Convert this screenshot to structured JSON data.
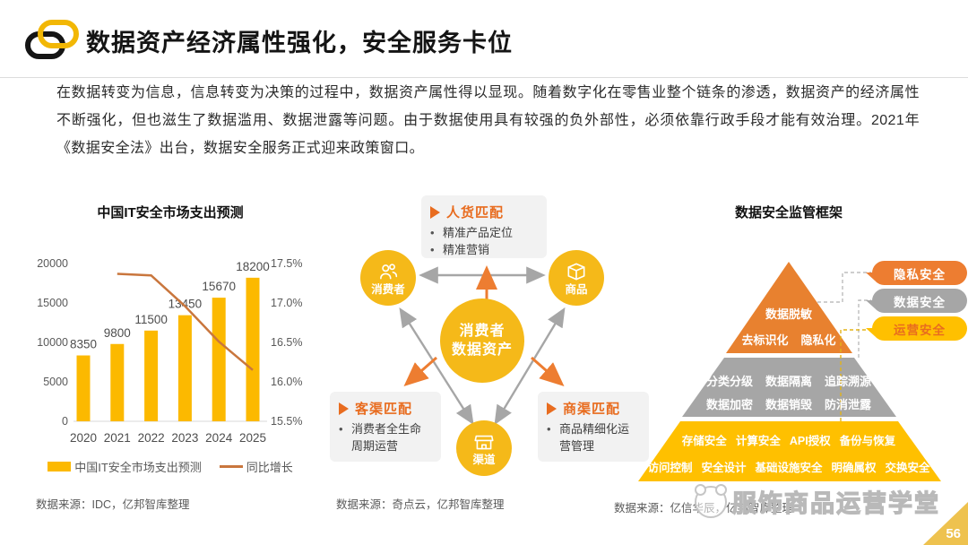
{
  "header": {
    "title": "数据资产经济属性强化，安全服务卡位",
    "logo_icon": "chain-links-icon",
    "accent_yellow": "#F2B705"
  },
  "intro": {
    "text": "在数据转变为信息，信息转变为决策的过程中，数据资产属性得以显现。随着数字化在零售业整个链条的渗透，数据资产的经济属性不断强化，但也滋生了数据滥用、数据泄露等问题。由于数据使用具有较强的负外部性，必须依靠行政手段才能有效治理。2021年《数据安全法》出台，数据安全服务正式迎来政策窗口。"
  },
  "chart_data": {
    "type": "bar+line",
    "title": "中国IT安全市场支出预测",
    "categories": [
      "2020",
      "2021",
      "2022",
      "2023",
      "2024",
      "2025"
    ],
    "series": [
      {
        "name": "中国IT安全市场支出预测",
        "type": "bar",
        "values": [
          8350,
          9800,
          11500,
          13450,
          15670,
          18200
        ],
        "color": "#FCB900"
      },
      {
        "name": "同比增长",
        "type": "line",
        "values": [
          null,
          17.37,
          17.35,
          16.96,
          16.51,
          16.15
        ],
        "unit": "%",
        "color": "#C9763D"
      }
    ],
    "left_axis": {
      "ticks": [
        "20000",
        "15000",
        "10000",
        "5000",
        "0"
      ],
      "min": 0,
      "max": 20000
    },
    "right_axis": {
      "ticks": [
        "17.5%",
        "17.0%",
        "16.5%",
        "16.0%",
        "15.5%"
      ],
      "min": 15.5,
      "max": 17.5
    },
    "grid": false,
    "legend_position": "bottom",
    "source": "数据来源：IDC，亿邦智库整理"
  },
  "diagram": {
    "center": {
      "lines": [
        "消费者",
        "数据资产"
      ],
      "color": "#F5B919"
    },
    "nodes": [
      {
        "label": "消费者",
        "icon": "users-icon"
      },
      {
        "label": "商品",
        "icon": "box-icon"
      },
      {
        "label": "渠道",
        "icon": "store-icon"
      }
    ],
    "cards": [
      {
        "title": "人货匹配",
        "bullets": [
          "精准产品定位",
          "精准营销"
        ]
      },
      {
        "title": "客渠匹配",
        "bullets": [
          "消费者全生命周期运营"
        ]
      },
      {
        "title": "商渠匹配",
        "bullets": [
          "商品精细化运营管理"
        ]
      }
    ],
    "arrow_orange": "#ED7D31",
    "arrow_gray": "#A6A6A6",
    "source": "数据来源：奇点云，亿邦智库整理"
  },
  "pyramid": {
    "title": "数据安全监管框架",
    "levels": [
      {
        "name": "隐私安全",
        "color": "#E8812F",
        "rows": [
          [
            "数据脱敏"
          ],
          [
            "去标识化",
            "隐私化"
          ]
        ]
      },
      {
        "name": "数据安全",
        "color": "#A6A6A6",
        "rows": [
          [
            "分类分级",
            "数据隔离",
            "追踪溯源"
          ],
          [
            "数据加密",
            "数据销毁",
            "防消泄露"
          ]
        ]
      },
      {
        "name": "运营安全",
        "color": "#FFC000",
        "rows": [
          [
            "存储安全",
            "计算安全",
            "API授权",
            "备份与恢复"
          ],
          [
            "访问控制",
            "安全设计",
            "基础设施安全",
            "明确属权",
            "交换安全"
          ]
        ]
      }
    ],
    "pills": [
      {
        "label": "隐私安全",
        "bg": "#ED7D31",
        "text": "#FFFFFF"
      },
      {
        "label": "数据安全",
        "bg": "#A6A6A6",
        "text": "#FFFFFF"
      },
      {
        "label": "运营安全",
        "bg": "#FFC000",
        "text": "#E86C1F"
      }
    ],
    "source": "数据来源：亿信华辰，亿邦智库整理"
  },
  "footer": {
    "page_number": "56",
    "watermark": "服饰商品运营学堂"
  }
}
